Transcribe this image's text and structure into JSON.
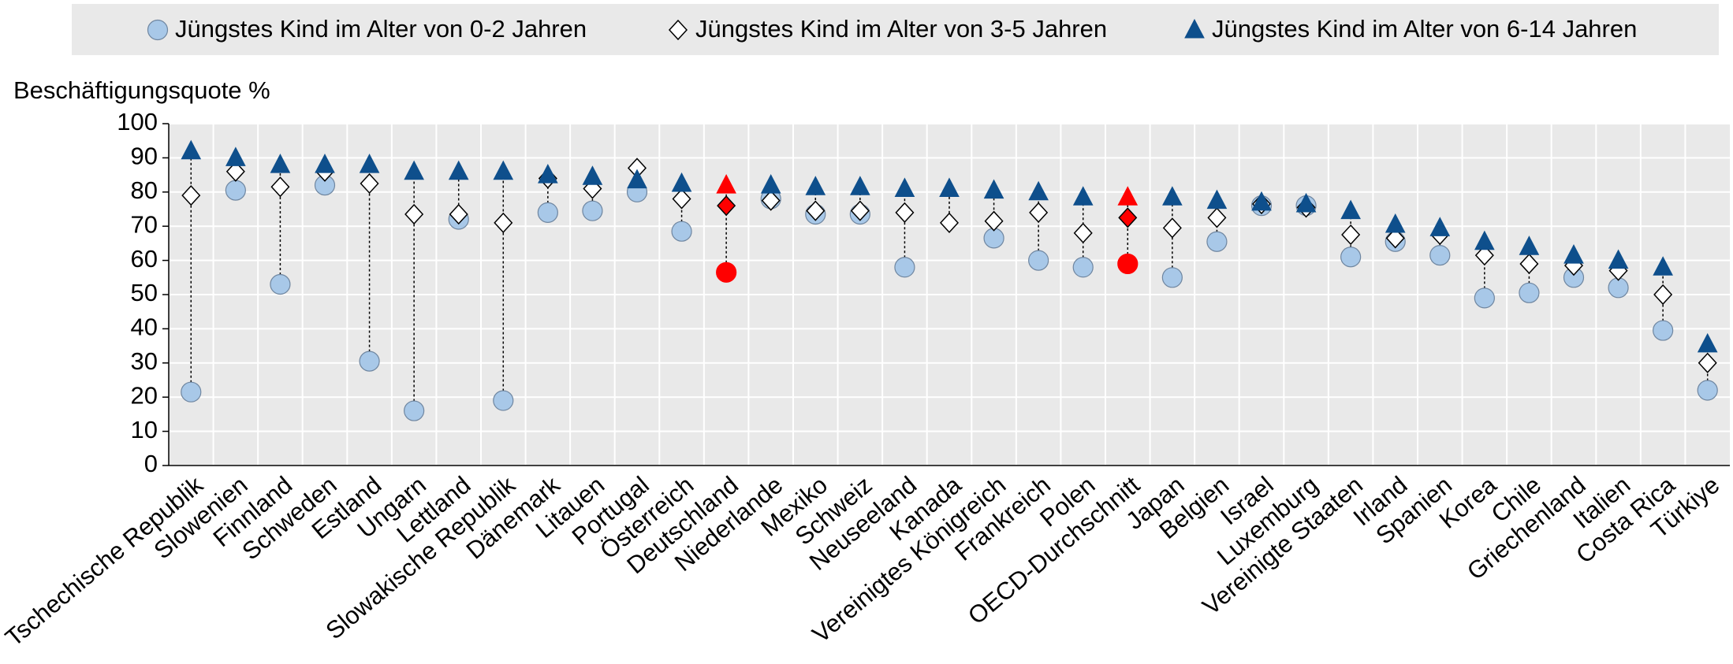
{
  "chart_data": {
    "type": "dot",
    "y_label": "Beschäftigungsquote %",
    "categories": [
      "Tschechische Republik",
      "Slowenien",
      "Finnland",
      "Schweden",
      "Estland",
      "Ungarn",
      "Lettland",
      "Slowakische Republik",
      "Dänemark",
      "Litauen",
      "Portugal",
      "Österreich",
      "Deutschland",
      "Niederlande",
      "Mexiko",
      "Schweiz",
      "Neuseeland",
      "Kanada",
      "Vereinigtes Königreich",
      "Frankreich",
      "Polen",
      "OECD-Durchschnitt",
      "Japan",
      "Belgien",
      "Israel",
      "Luxemburg",
      "Vereinigte Staaten",
      "Irland",
      "Spanien",
      "Korea",
      "Chile",
      "Griechenland",
      "Italien",
      "Costa Rica",
      "Türkiye"
    ],
    "series": [
      {
        "name": "Jüngstes Kind im Alter von 0-2 Jahren",
        "color": "#a8c8e8",
        "marker": "circle",
        "values": [
          21.5,
          80.5,
          53,
          82,
          30.5,
          16,
          72,
          19,
          74,
          74.5,
          80,
          68.5,
          56.5,
          78,
          73.5,
          73.5,
          58,
          null,
          66.5,
          60,
          58,
          59,
          55,
          65.5,
          76,
          76,
          61,
          65.5,
          61.5,
          49,
          50.5,
          55,
          52,
          39.5,
          22
        ]
      },
      {
        "name": "Jüngstes Kind im Alter von 3-5 Jahren",
        "color": "#ffffff",
        "marker": "diamond",
        "values": [
          79,
          86,
          81.5,
          86,
          82.5,
          73.5,
          73.5,
          71,
          84,
          81,
          87,
          78,
          76,
          77.5,
          74.5,
          74.5,
          74,
          71,
          71.5,
          74,
          68,
          72.5,
          69.5,
          72.5,
          76.5,
          75.5,
          67.5,
          66.5,
          67.5,
          61.5,
          59,
          58.5,
          57,
          50,
          30
        ]
      },
      {
        "name": "Jüngstes Kind im Alter von 6-14 Jahren",
        "color": "#0e4f8c",
        "marker": "triangle",
        "values": [
          92,
          90,
          88,
          88,
          88,
          86,
          86,
          86,
          85,
          84.5,
          83.5,
          82.5,
          82,
          82,
          81.5,
          81.5,
          81,
          81,
          80.5,
          80,
          78.5,
          78.5,
          78.5,
          77.5,
          77,
          76.5,
          74.5,
          70.5,
          69.5,
          65.5,
          64,
          61.5,
          60,
          58,
          35.5
        ]
      }
    ],
    "highlight": [
      "Deutschland",
      "OECD-Durchschnitt"
    ],
    "highlight_color": "#ff0000",
    "ylim": [
      0,
      100
    ],
    "yticks": [
      0,
      10,
      20,
      30,
      40,
      50,
      60,
      70,
      80,
      90,
      100
    ],
    "grid": true
  }
}
